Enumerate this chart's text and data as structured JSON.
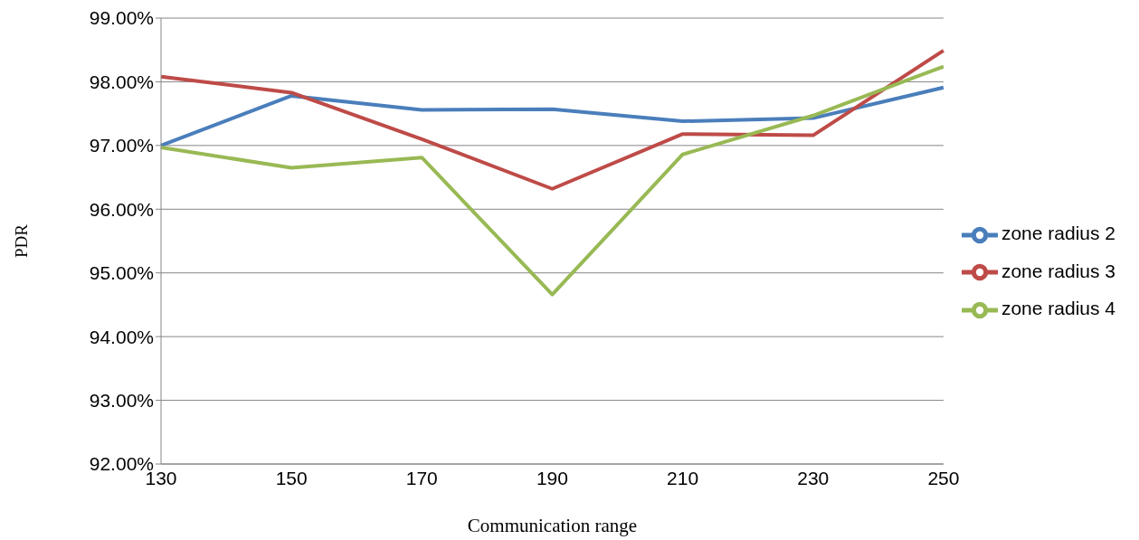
{
  "chart_data": {
    "type": "line",
    "xlabel": "Communication range",
    "ylabel": "PDR",
    "categories": [
      "130",
      "150",
      "170",
      "190",
      "210",
      "230",
      "250"
    ],
    "series": [
      {
        "name": "zone radius 2",
        "color": "#4a7ebb",
        "values": [
          97.0,
          97.78,
          97.56,
          97.57,
          97.38,
          97.43,
          97.91
        ]
      },
      {
        "name": "zone radius 3",
        "color": "#be4b48",
        "values": [
          98.08,
          97.83,
          97.1,
          96.32,
          97.18,
          97.16,
          98.49
        ]
      },
      {
        "name": "zone radius 4",
        "color": "#98b954",
        "values": [
          96.97,
          96.65,
          96.81,
          94.66,
          96.86,
          97.47,
          98.24
        ]
      }
    ],
    "ylim": [
      92,
      99
    ],
    "yticks": [
      {
        "value": 92,
        "label": "92.00%"
      },
      {
        "value": 93,
        "label": "93.00%"
      },
      {
        "value": 94,
        "label": "94.00%"
      },
      {
        "value": 95,
        "label": "95.00%"
      },
      {
        "value": 96,
        "label": "96.00%"
      },
      {
        "value": 97,
        "label": "97.00%"
      },
      {
        "value": 98,
        "label": "98.00%"
      },
      {
        "value": 99,
        "label": "99.00%"
      }
    ],
    "grid": "y",
    "legend": "right",
    "marker": "none",
    "line_style": "solid"
  }
}
